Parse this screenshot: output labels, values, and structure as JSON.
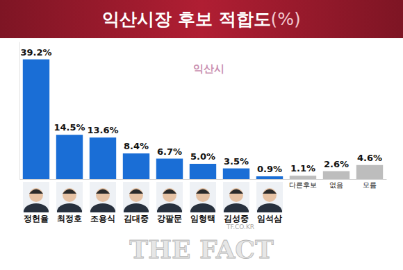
{
  "chart_data": {
    "type": "bar",
    "title": "익산시장 후보 적합도(%)",
    "categories": [
      "정헌율",
      "최정호",
      "조용식",
      "김대중",
      "강팔문",
      "임형택",
      "김성중",
      "임석삼",
      "다른후보",
      "없음",
      "모름"
    ],
    "values": [
      39.2,
      14.5,
      13.6,
      8.4,
      6.7,
      5.0,
      3.5,
      0.9,
      1.1,
      2.6,
      4.6
    ],
    "value_labels": [
      "39.2%",
      "14.5%",
      "13.6%",
      "8.4%",
      "6.7%",
      "5.0%",
      "3.5%",
      "0.9%",
      "1.1%",
      "2.6%",
      "4.6%"
    ],
    "colors": [
      "#1a6ed6",
      "#1a6ed6",
      "#1a6ed6",
      "#1a6ed6",
      "#1a6ed6",
      "#1a6ed6",
      "#1a6ed6",
      "#1a6ed6",
      "#bdbdbd",
      "#bdbdbd",
      "#bdbdbd"
    ],
    "ylim": [
      0,
      45
    ],
    "yticks": [],
    "grid": false,
    "data_labels": true,
    "tick_labels": "x",
    "annotations": [
      "익산시",
      "TF.CO.KR",
      "THE FACT"
    ]
  }
}
